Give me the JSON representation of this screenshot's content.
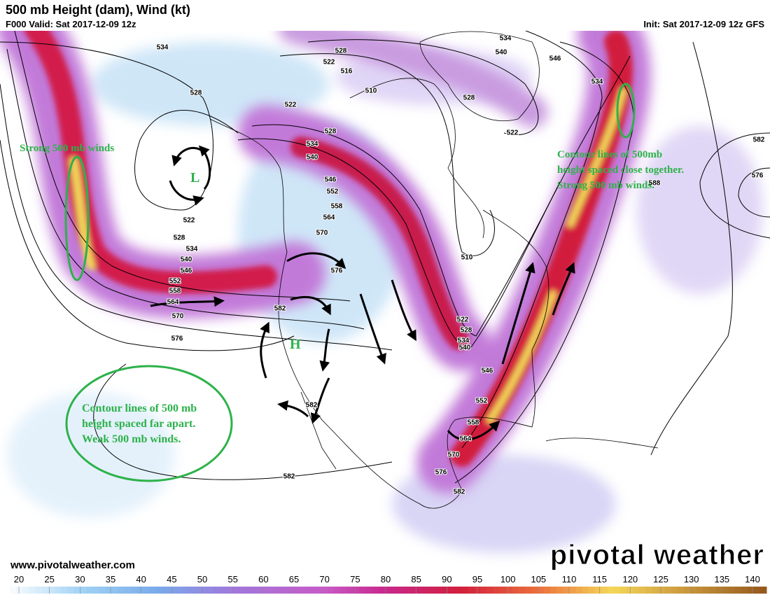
{
  "header": {
    "title": "500 mb Height (dam), Wind (kt)",
    "valid": "F000 Valid: Sat 2017-12-09 12z",
    "init": "Init: Sat 2017-12-09 12z GFS"
  },
  "annotations": {
    "strong_west": "Strong 500 mb winds",
    "strong_east": [
      "Contour lines of 500mb",
      "height spaced close together.",
      "Strong 500 mb winds."
    ],
    "weak": [
      "Contour lines of 500 mb",
      "height spaced far apart.",
      "Weak 500 mb winds."
    ],
    "low": "L",
    "high": "H"
  },
  "contour_labels": [
    "534",
    "528",
    "522",
    "528",
    "522",
    "516",
    "510",
    "534",
    "540",
    "546",
    "534",
    "528",
    "522",
    "528",
    "534",
    "540",
    "546",
    "552",
    "558",
    "564",
    "570",
    "576",
    "522",
    "528",
    "534",
    "540",
    "546",
    "552",
    "558",
    "564",
    "570",
    "576",
    "582",
    "510",
    "522",
    "528",
    "534",
    "540",
    "546",
    "552",
    "558",
    "564",
    "570",
    "576",
    "582",
    "582",
    "582",
    "582",
    "576",
    "588"
  ],
  "footer": {
    "url": "www.pivotalweather.com",
    "brand": "pivotal weather"
  },
  "colorbar": {
    "ticks": [
      20,
      25,
      30,
      35,
      40,
      45,
      50,
      55,
      60,
      65,
      70,
      75,
      80,
      85,
      90,
      95,
      100,
      105,
      110,
      115,
      120,
      125,
      130,
      135,
      140
    ]
  }
}
